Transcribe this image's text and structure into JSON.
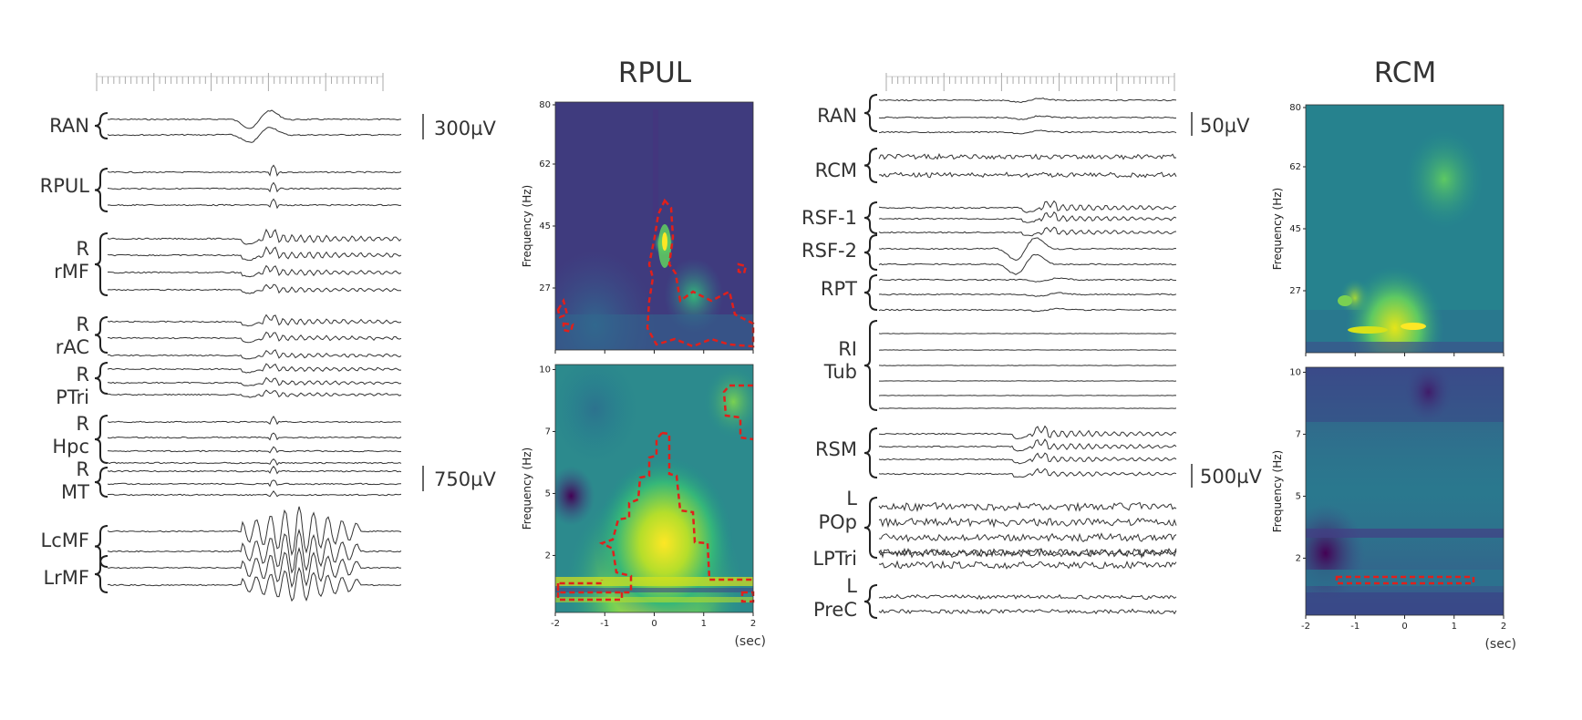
{
  "left_panel": {
    "labels": [
      {
        "id": "ran",
        "lines": [
          "RAN"
        ]
      },
      {
        "id": "rpul",
        "lines": [
          "RPUL"
        ]
      },
      {
        "id": "rrmf",
        "lines": [
          "R",
          "rMF"
        ]
      },
      {
        "id": "rrac",
        "lines": [
          "R",
          "rAC"
        ]
      },
      {
        "id": "rptri",
        "lines": [
          "R",
          "PTri"
        ]
      },
      {
        "id": "rhpc",
        "lines": [
          "R",
          "Hpc"
        ]
      },
      {
        "id": "rmt",
        "lines": [
          "R",
          "MT"
        ]
      },
      {
        "id": "lcmf",
        "lines": [
          "LcMF"
        ]
      },
      {
        "id": "lrmf",
        "lines": [
          "LrMF"
        ]
      }
    ],
    "scale_bars": [
      "300µV",
      "750µV"
    ]
  },
  "right_panel": {
    "labels": [
      {
        "id": "ran2",
        "lines": [
          "RAN"
        ]
      },
      {
        "id": "rcm",
        "lines": [
          "RCM"
        ]
      },
      {
        "id": "rsf1",
        "lines": [
          "RSF-1"
        ]
      },
      {
        "id": "rsf2",
        "lines": [
          "RSF-2"
        ]
      },
      {
        "id": "rpt",
        "lines": [
          "RPT"
        ]
      },
      {
        "id": "ritub",
        "lines": [
          "RI",
          "Tub"
        ]
      },
      {
        "id": "rsm",
        "lines": [
          "RSM"
        ]
      },
      {
        "id": "lpop",
        "lines": [
          "L",
          "POp"
        ]
      },
      {
        "id": "lptri",
        "lines": [
          "LPTri"
        ]
      },
      {
        "id": "lprec",
        "lines": [
          "L",
          "PreC"
        ]
      }
    ],
    "scale_bars": [
      "50µV",
      "500µV"
    ]
  },
  "spectrograms": [
    {
      "title": "RPUL",
      "ylabel": "Frequency (Hz)",
      "top_yticks": [
        "80",
        "62",
        "45",
        "27"
      ],
      "bottom_yticks": [
        "10",
        "7",
        "5",
        "2"
      ],
      "xticks": [
        "-2",
        "-1",
        "0",
        "1",
        "2"
      ],
      "xunit": "(sec)"
    },
    {
      "title": "RCM",
      "ylabel": "Frequency (Hz)",
      "top_yticks": [
        "80",
        "62",
        "45",
        "27"
      ],
      "bottom_yticks": [
        "10",
        "7",
        "5",
        "2"
      ],
      "xticks": [
        "-2",
        "-1",
        "0",
        "1",
        "2"
      ],
      "xunit": "(sec)"
    }
  ],
  "colors": {
    "viridis_dark": "#440154",
    "viridis_mid": "#21918c",
    "viridis_bright": "#fde725",
    "significance_contour": "#e0201b"
  }
}
